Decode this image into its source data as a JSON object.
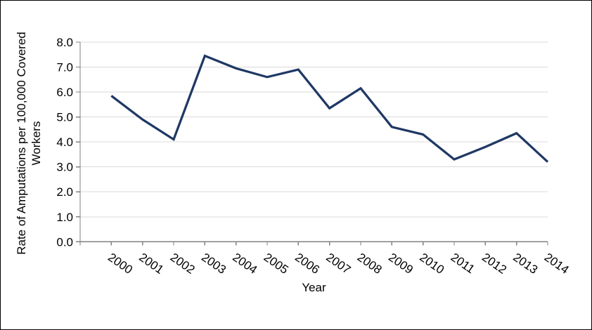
{
  "chart_data": {
    "type": "line",
    "title": "",
    "xlabel": "Year",
    "ylabel": "Rate of Amputations per 100,000 Covered Workers",
    "categories": [
      "2000",
      "2001",
      "2002",
      "2003",
      "2004",
      "2005",
      "2006",
      "2007",
      "2008",
      "2009",
      "2010",
      "2011",
      "2012",
      "2013",
      "2014"
    ],
    "values": [
      5.85,
      4.9,
      4.1,
      7.45,
      6.95,
      6.6,
      6.9,
      5.35,
      6.15,
      4.6,
      4.3,
      3.3,
      3.8,
      4.35,
      3.2
    ],
    "ylim": [
      0,
      8
    ],
    "y_tick_interval": 1.0,
    "y_tick_labels": [
      "0.0",
      "1.0",
      "2.0",
      "3.0",
      "4.0",
      "5.0",
      "6.0",
      "7.0",
      "8.0"
    ],
    "x_tick_rotation_deg": 35,
    "grid": "horizontal",
    "legend": "none",
    "colors": {
      "line": "#1F3864",
      "gridline": "#D9D9D9",
      "axis": "#808080",
      "text": "#000000",
      "background": "#FFFFFF",
      "border": "#000000"
    }
  }
}
